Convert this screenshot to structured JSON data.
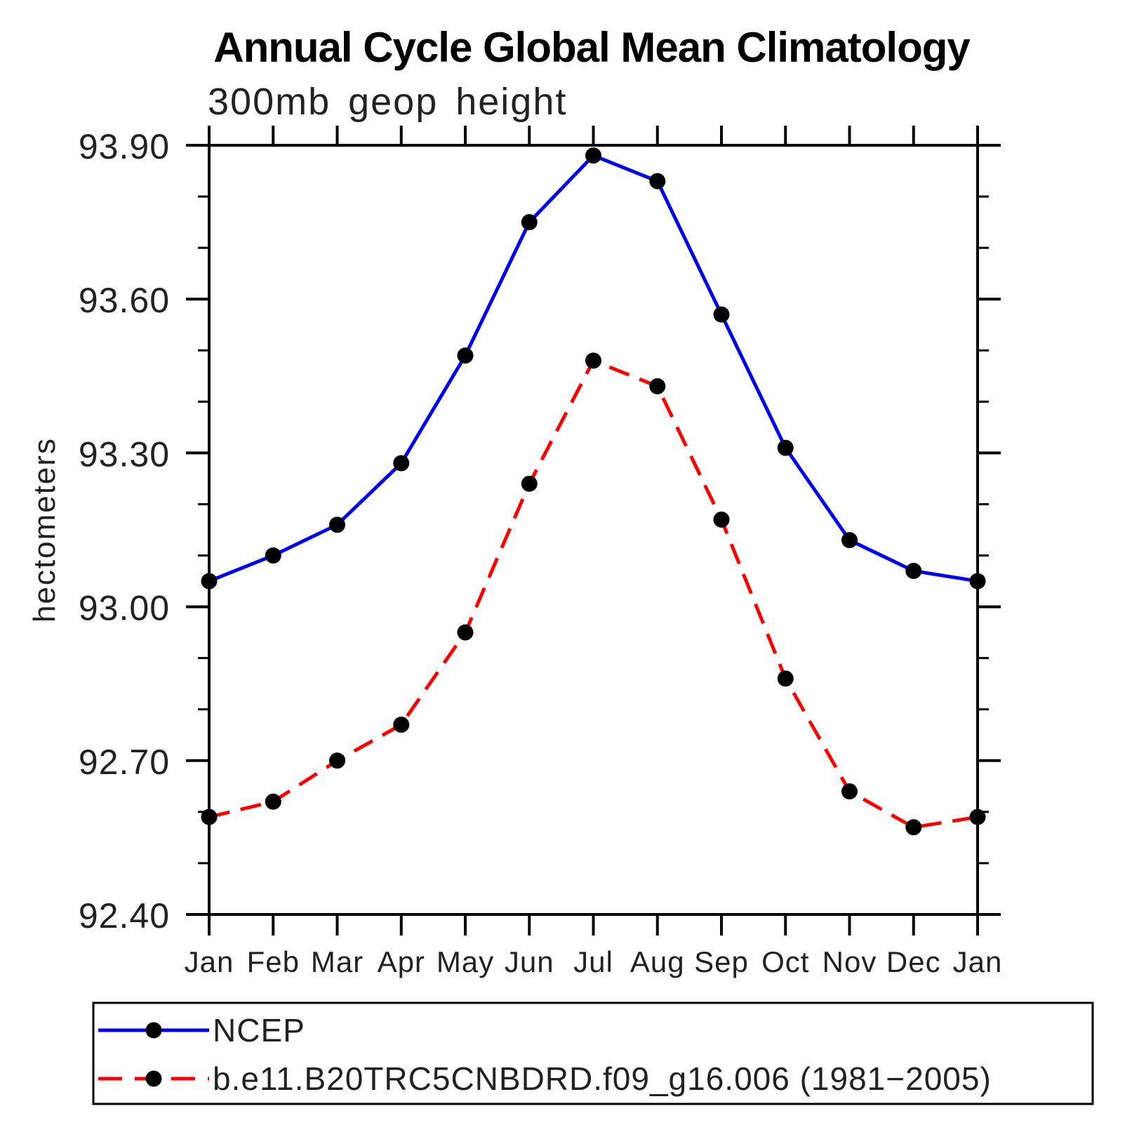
{
  "chart_data": {
    "type": "line",
    "title": "Annual Cycle Global Mean Climatology",
    "subtitle": "300mb geop height",
    "xlabel": "",
    "ylabel": "hectometers",
    "categories": [
      "Jan",
      "Feb",
      "Mar",
      "Apr",
      "May",
      "Jun",
      "Jul",
      "Aug",
      "Sep",
      "Oct",
      "Nov",
      "Dec",
      "Jan"
    ],
    "ylim": [
      92.4,
      93.9
    ],
    "y_major_step": 0.3,
    "y_minor_step": 0.1,
    "y_tick_labels": [
      "92.40",
      "92.70",
      "93.00",
      "93.30",
      "93.60",
      "93.90"
    ],
    "grid": false,
    "legend_position": "bottom",
    "marker_color": "#000000",
    "series": [
      {
        "name": "NCEP",
        "color": "#0000ee",
        "style": "solid",
        "marker": "circle",
        "values": [
          93.05,
          93.1,
          93.16,
          93.28,
          93.49,
          93.75,
          93.88,
          93.83,
          93.57,
          93.31,
          93.13,
          93.07,
          93.05
        ]
      },
      {
        "name": "b.e11.B20TRC5CNBDRD.f09_g16.006 (1981−2005)",
        "color": "#ff0000",
        "style": "dashed",
        "marker": "circle",
        "values": [
          92.59,
          92.62,
          92.7,
          92.77,
          92.95,
          93.24,
          93.48,
          93.43,
          93.17,
          92.86,
          92.64,
          92.57,
          92.59
        ]
      }
    ]
  }
}
